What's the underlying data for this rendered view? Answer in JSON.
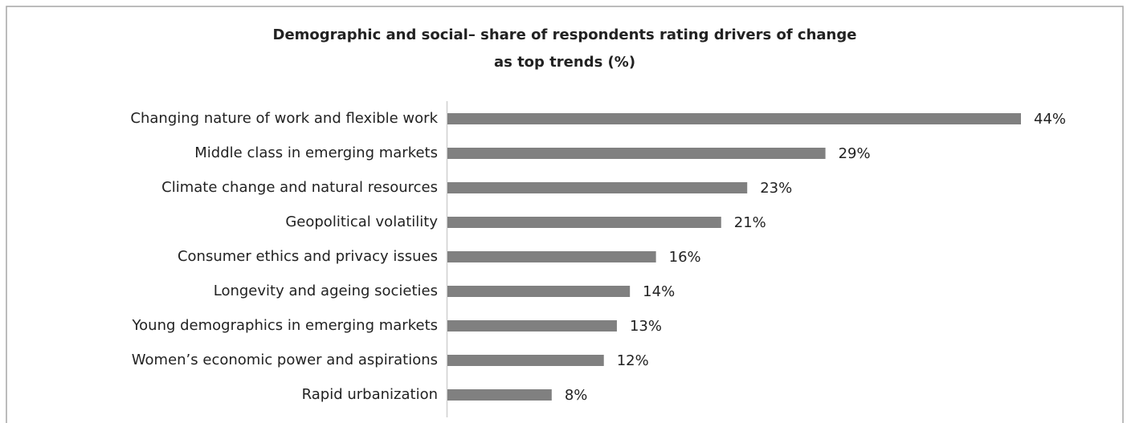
{
  "chart_data": {
    "type": "bar",
    "orientation": "horizontal",
    "title": [
      "Demographic and social– share of respondents rating drivers of change",
      "as top trends (%)"
    ],
    "categories": [
      "Changing nature of work and flexible work",
      "Middle class in emerging markets",
      "Climate change and natural resources",
      "Geopolitical volatility",
      "Consumer ethics and privacy issues",
      "Longevity and ageing societies",
      "Young demographics in emerging markets",
      "Women’s economic power and aspirations",
      "Rapid urbanization"
    ],
    "values": [
      44,
      29,
      23,
      21,
      16,
      14,
      13,
      12,
      8
    ],
    "value_labels": [
      "44%",
      "29%",
      "23%",
      "21%",
      "16%",
      "14%",
      "13%",
      "12%",
      "8%"
    ],
    "color": "#808080"
  }
}
